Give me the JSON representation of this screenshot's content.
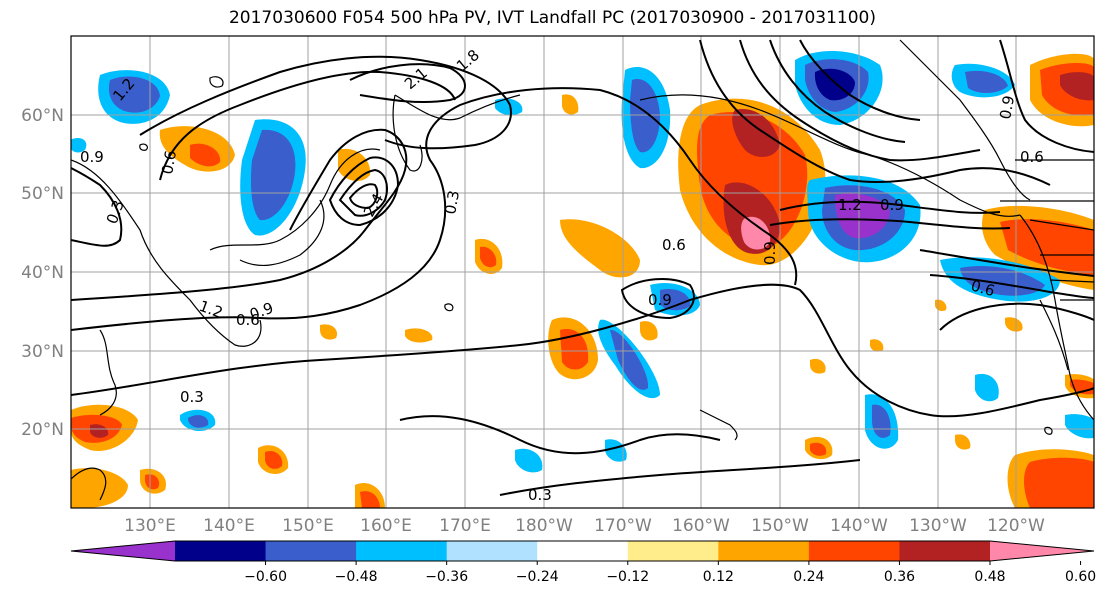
{
  "title": "2017030600 F054 500 hPa PV, IVT Landfall PC (2017030900 - 2017031100)",
  "map": {
    "lat_ticks": [
      "60°N",
      "50°N",
      "40°N",
      "30°N",
      "20°N"
    ],
    "lon_ticks": [
      "130°E",
      "140°E",
      "150°E",
      "160°E",
      "170°E",
      "180°W",
      "170°W",
      "160°W",
      "150°W",
      "140°W",
      "130°W",
      "120°W"
    ],
    "contour_labels": [
      "1.2",
      "0.9",
      "0.6",
      "0.3",
      "0.3",
      "0.6",
      "0.9",
      "1.2",
      "0.9",
      "0.6",
      "0.9",
      "0.3",
      "0.9",
      "0.6",
      "1.2",
      "0.9",
      "0.6",
      "2.4",
      "1.8",
      "2.1",
      "0.3"
    ]
  },
  "colorbar": {
    "ticks": [
      "−0.60",
      "−0.48",
      "−0.36",
      "−0.24",
      "−0.12",
      "0.12",
      "0.24",
      "0.36",
      "0.48",
      "0.60"
    ],
    "colors": [
      "#9932cc",
      "#00008b",
      "#3a5fcd",
      "#00bfff",
      "#b0e2ff",
      "#ffffff",
      "#ffec8b",
      "#ffa500",
      "#ff4500",
      "#b22222",
      "#ff88aa"
    ]
  }
}
